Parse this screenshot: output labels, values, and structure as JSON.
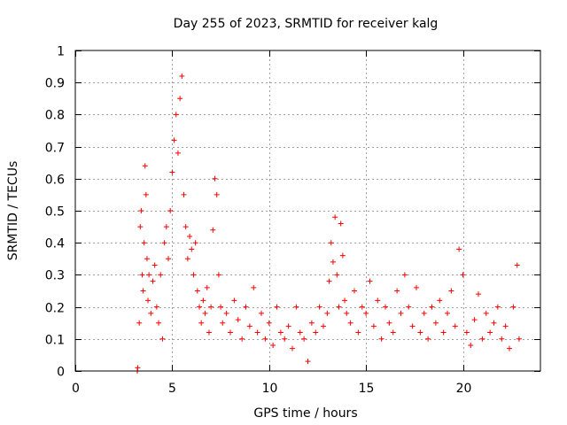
{
  "chart_data": {
    "type": "scatter",
    "title": "Day 255 of 2023, SRMTID for receiver kalg",
    "xlabel": "GPS time / hours",
    "ylabel": "SRMTID / TECUs",
    "xlim": [
      0,
      24
    ],
    "ylim": [
      0,
      1
    ],
    "xticks": [
      0,
      5,
      10,
      15,
      20
    ],
    "xtick_labels": [
      "0",
      "5",
      "10",
      "15",
      "20"
    ],
    "yticks": [
      0,
      0.1,
      0.2,
      0.3,
      0.4,
      0.5,
      0.6,
      0.7,
      0.8,
      0.9,
      1
    ],
    "ytick_labels": [
      "0",
      "0.1",
      "0.2",
      "0.3",
      "0.4",
      "0.5",
      "0.6",
      "0.7",
      "0.8",
      "0.9",
      "1"
    ],
    "grid": true,
    "marker": "+",
    "series": [
      {
        "name": "SRMTID",
        "color": "#ff0000",
        "x": [
          3.2,
          3.22,
          3.3,
          3.35,
          3.4,
          3.45,
          3.5,
          3.55,
          3.6,
          3.65,
          3.7,
          3.75,
          3.8,
          3.9,
          4.0,
          4.1,
          4.2,
          4.3,
          4.4,
          4.5,
          4.6,
          4.7,
          4.8,
          4.9,
          5.0,
          5.1,
          5.2,
          5.3,
          5.4,
          5.5,
          5.6,
          5.7,
          5.8,
          5.9,
          6.0,
          6.1,
          6.2,
          6.3,
          6.4,
          6.5,
          6.6,
          6.7,
          6.8,
          6.9,
          7.0,
          7.1,
          7.2,
          7.3,
          7.4,
          7.5,
          7.6,
          7.8,
          8.0,
          8.2,
          8.4,
          8.6,
          8.8,
          9.0,
          9.2,
          9.4,
          9.6,
          9.8,
          10.0,
          10.2,
          10.4,
          10.6,
          10.8,
          11.0,
          11.2,
          11.4,
          11.6,
          11.8,
          12.0,
          12.2,
          12.4,
          12.6,
          12.8,
          13.0,
          13.1,
          13.2,
          13.3,
          13.4,
          13.5,
          13.6,
          13.7,
          13.8,
          13.9,
          14.0,
          14.2,
          14.4,
          14.6,
          14.8,
          15.0,
          15.2,
          15.4,
          15.6,
          15.8,
          16.0,
          16.2,
          16.4,
          16.6,
          16.8,
          17.0,
          17.2,
          17.4,
          17.6,
          17.8,
          18.0,
          18.2,
          18.4,
          18.6,
          18.8,
          19.0,
          19.2,
          19.4,
          19.6,
          19.8,
          20.0,
          20.2,
          20.4,
          20.6,
          20.8,
          21.0,
          21.2,
          21.4,
          21.6,
          21.8,
          22.0,
          22.2,
          22.4,
          22.6,
          22.8,
          22.9
        ],
        "y": [
          0.0,
          0.01,
          0.15,
          0.45,
          0.5,
          0.3,
          0.25,
          0.4,
          0.64,
          0.55,
          0.35,
          0.22,
          0.3,
          0.18,
          0.28,
          0.33,
          0.2,
          0.15,
          0.3,
          0.1,
          0.4,
          0.45,
          0.35,
          0.5,
          0.62,
          0.72,
          0.8,
          0.68,
          0.85,
          0.92,
          0.55,
          0.45,
          0.35,
          0.42,
          0.38,
          0.3,
          0.4,
          0.25,
          0.2,
          0.15,
          0.22,
          0.18,
          0.26,
          0.12,
          0.2,
          0.44,
          0.6,
          0.55,
          0.3,
          0.2,
          0.15,
          0.18,
          0.12,
          0.22,
          0.16,
          0.1,
          0.2,
          0.14,
          0.26,
          0.12,
          0.18,
          0.1,
          0.15,
          0.08,
          0.2,
          0.12,
          0.1,
          0.14,
          0.07,
          0.2,
          0.12,
          0.1,
          0.03,
          0.15,
          0.12,
          0.2,
          0.14,
          0.18,
          0.28,
          0.4,
          0.34,
          0.48,
          0.3,
          0.2,
          0.46,
          0.36,
          0.22,
          0.18,
          0.15,
          0.25,
          0.12,
          0.2,
          0.18,
          0.28,
          0.14,
          0.22,
          0.1,
          0.2,
          0.15,
          0.12,
          0.25,
          0.18,
          0.3,
          0.2,
          0.14,
          0.26,
          0.12,
          0.18,
          0.1,
          0.2,
          0.15,
          0.22,
          0.12,
          0.18,
          0.25,
          0.14,
          0.38,
          0.3,
          0.12,
          0.08,
          0.16,
          0.24,
          0.1,
          0.18,
          0.12,
          0.15,
          0.2,
          0.1,
          0.14,
          0.07,
          0.2,
          0.33,
          0.1
        ]
      }
    ]
  }
}
